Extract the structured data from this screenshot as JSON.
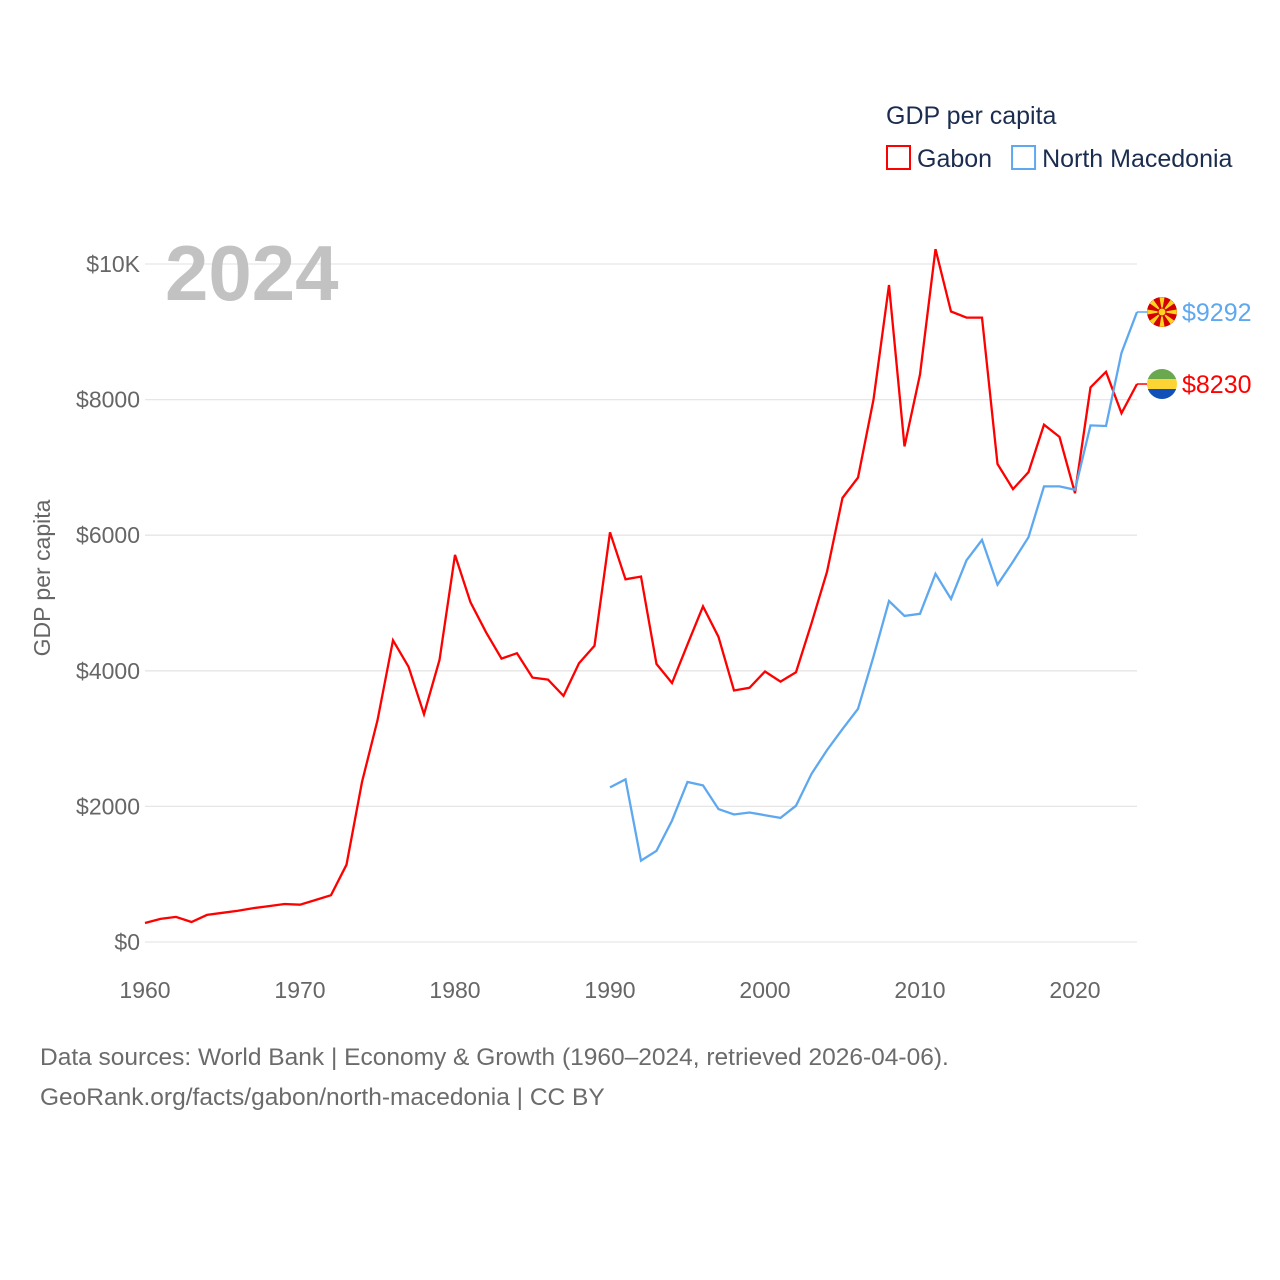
{
  "chart_data": {
    "type": "line",
    "title": "GDP per capita",
    "year_watermark": "2024",
    "ylabel": "GDP per capita",
    "xlabel": "",
    "xlim": [
      1960,
      2024
    ],
    "ylim": [
      0,
      10000
    ],
    "x_ticks": [
      1960,
      1970,
      1980,
      1990,
      2000,
      2010,
      2020
    ],
    "x_tick_labels": [
      "1960",
      "1970",
      "1980",
      "1990",
      "2000",
      "2010",
      "2020"
    ],
    "y_ticks": [
      0,
      2000,
      4000,
      6000,
      8000,
      10000
    ],
    "y_tick_labels": [
      "$0",
      "$2000",
      "$4000",
      "$6000",
      "$8000",
      "$10K"
    ],
    "grid": true,
    "legend_position": "top-right",
    "series": [
      {
        "name": "Gabon",
        "color": "#ff0000",
        "end_label": "$8230",
        "flag": "gabon-flag",
        "x_start": 1960,
        "values": [
          280,
          340,
          370,
          295,
          400,
          430,
          460,
          500,
          530,
          560,
          550,
          620,
          690,
          1140,
          2360,
          3270,
          4450,
          4060,
          3360,
          4160,
          5710,
          5010,
          4570,
          4180,
          4260,
          3900,
          3870,
          3630,
          4110,
          4370,
          6043,
          5350,
          5390,
          4100,
          3820,
          4390,
          4950,
          4500,
          3710,
          3750,
          3990,
          3840,
          3980,
          4700,
          5460,
          6550,
          6850,
          8000,
          9690,
          7310,
          8370,
          10220,
          9300,
          9210,
          9210,
          7050,
          6680,
          6930,
          7630,
          7450,
          6620,
          8180,
          8410,
          7800,
          8230
        ]
      },
      {
        "name": "North Macedonia",
        "color": "#5ea8f0",
        "end_label": "$9292",
        "flag": "north-macedonia-flag",
        "x_start": 1990,
        "values": [
          2280,
          2400,
          1200,
          1345,
          1790,
          2360,
          2310,
          1960,
          1880,
          1910,
          1870,
          1830,
          2010,
          2480,
          2830,
          3140,
          3440,
          4210,
          5030,
          4810,
          4840,
          5430,
          5060,
          5630,
          5930,
          5270,
          5610,
          5970,
          6720,
          6720,
          6670,
          7620,
          7610,
          8690,
          9292
        ]
      }
    ]
  },
  "footer": {
    "line1": "Data sources: World Bank | Economy & Growth (1960–2024, retrieved 2026-04-06).",
    "line2": "GeoRank.org/facts/gabon/north-macedonia | CC BY"
  }
}
